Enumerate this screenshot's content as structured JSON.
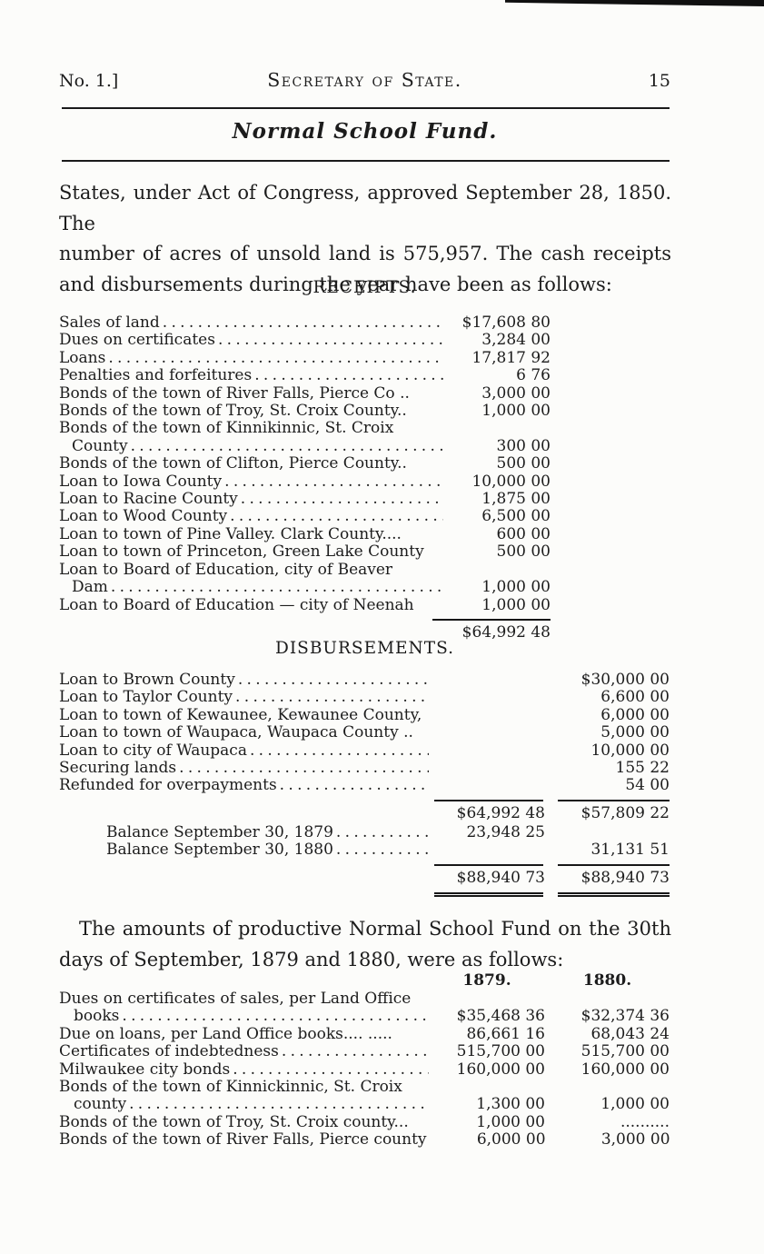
{
  "page": {
    "doc_no": "No. 1.]",
    "running_title": "Secretary of State.",
    "page_number": "15",
    "title": "Normal School Fund."
  },
  "intro": {
    "lines": [
      "States, under Act of Congress, approved September 28, 1850. The",
      "number of acres of unsold land is 575,957. The cash receipts",
      "and disbursements during the year have been as follows:"
    ]
  },
  "receipts": {
    "heading": "RECEIPTS.",
    "rows": [
      {
        "label": "Sales of land",
        "leader": true,
        "amount": "$17,608 80"
      },
      {
        "label": "Dues on certificates",
        "leader": true,
        "amount": "3,284 00"
      },
      {
        "label": "Loans",
        "leader": true,
        "amount": "17,817 92"
      },
      {
        "label": "Penalties and forfeitures",
        "leader": true,
        "amount": "6 76"
      },
      {
        "label": "Bonds of the town of River Falls, Pierce Co ..",
        "amount": "3,000 00"
      },
      {
        "label": "Bonds of the town of Troy, St. Croix County..",
        "amount": "1,000 00"
      },
      {
        "label": "Bonds of the town of Kinnikinnic, St. Croix",
        "amount": ""
      },
      {
        "label": "County",
        "indent": 14,
        "leader": true,
        "amount": "300 00"
      },
      {
        "label": "Bonds of the town of Clifton, Pierce County..",
        "amount": "500 00"
      },
      {
        "label": "Loan to Iowa County",
        "leader": true,
        "amount": "10,000 00"
      },
      {
        "label": "Loan to Racine County",
        "leader": true,
        "amount": "1,875 00"
      },
      {
        "label": "Loan to Wood County",
        "leader": true,
        "amount": "6,500 00"
      },
      {
        "label": "Loan to town of Pine Valley. Clark County....",
        "amount": "600 00"
      },
      {
        "label": "Loan to town of Princeton, Green Lake County",
        "amount": "500 00"
      },
      {
        "label": "Loan to Board of Education, city of Beaver",
        "amount": ""
      },
      {
        "label": "Dam",
        "indent": 14,
        "leader": true,
        "amount": "1,000 00"
      },
      {
        "label": "Loan to Board of Education — city of Neenah",
        "amount": "1,000 00"
      }
    ],
    "total": "$64,992 48"
  },
  "disbursements": {
    "heading": "DISBURSEMENTS.",
    "rows": [
      {
        "label": "Loan to Brown County",
        "leader": true,
        "col2": "$30,000 00"
      },
      {
        "label": "Loan to Taylor County",
        "leader": true,
        "col2": "6,600 00"
      },
      {
        "label": "Loan to town of Kewaunee, Kewaunee County,",
        "col2": "6,000 00"
      },
      {
        "label": "Loan to town of Waupaca, Waupaca County ..",
        "col2": "5,000 00"
      },
      {
        "label": "Loan to city of Waupaca",
        "leader": true,
        "col2": "10,000 00"
      },
      {
        "label": "Securing lands",
        "leader": true,
        "col2": "155 22"
      },
      {
        "label": "Refunded for overpayments",
        "leader": true,
        "col2": "54 00"
      }
    ],
    "subtotal": {
      "col1": "$64,992 48",
      "col2": "$57,809 22"
    },
    "balance_rows": [
      {
        "label": "Balance September 30, 1879",
        "indent": 52,
        "leader": true,
        "col1": "23,948 25",
        "col2": ""
      },
      {
        "label": "Balance September 30, 1880",
        "indent": 52,
        "leader": true,
        "col1": "",
        "col2": "31,131 51"
      }
    ],
    "total": {
      "col1": "$88,940 73",
      "col2": "$88,940 73"
    }
  },
  "fund_paragraph": {
    "lines": [
      "The amounts of productive Normal School Fund on the 30th",
      "days of September, 1879 and 1880, were as follows:"
    ]
  },
  "fund_table": {
    "col_headers": [
      "1879.",
      "1880."
    ],
    "rows": [
      {
        "label": "Dues on certificates of sales, per Land Office"
      },
      {
        "label": "books",
        "indent": 16,
        "leader": true,
        "col1": "$35,468 36",
        "col2": "$32,374 36"
      },
      {
        "label": "Due on loans, per Land Office books.... .....",
        "col1": "86,661 16",
        "col2": "68,043 24"
      },
      {
        "label": "Certificates of indebtedness",
        "leader": true,
        "col1": "515,700 00",
        "col2": "515,700 00"
      },
      {
        "label": "Milwaukee city bonds",
        "leader": true,
        "col1": "160,000 00",
        "col2": "160,000 00"
      },
      {
        "label": "Bonds of the town of Kinnickinnic, St. Croix"
      },
      {
        "label": "county",
        "indent": 16,
        "leader": true,
        "col1": "1,300 00",
        "col2": "1,000 00"
      },
      {
        "label": "Bonds of the town of Troy, St. Croix county...",
        "col1": "1,000 00",
        "col2": ".........."
      },
      {
        "label": "Bonds of the town of River Falls, Pierce county",
        "col1": "6,000 00",
        "col2": "3,000 00"
      }
    ]
  }
}
